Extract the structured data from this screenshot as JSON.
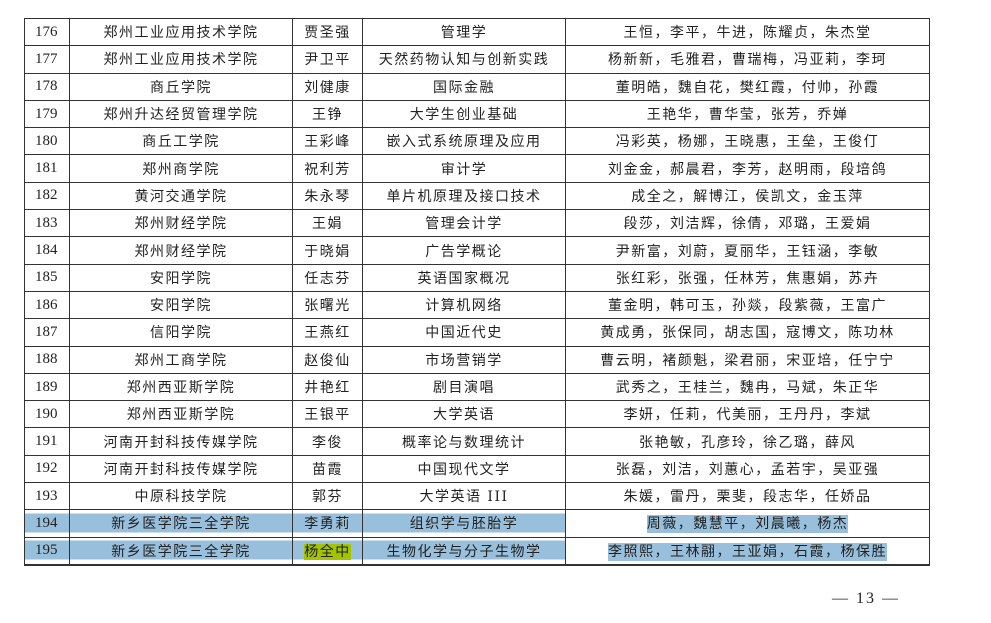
{
  "rows": [
    {
      "no": "176",
      "school": "郑州工业应用技术学院",
      "leader": "贾圣强",
      "course": "管理学",
      "team": "王恒，李平，牛进，陈耀贞，朱杰堂"
    },
    {
      "no": "177",
      "school": "郑州工业应用技术学院",
      "leader": "尹卫平",
      "course": "天然药物认知与创新实践",
      "team": "杨新新，毛雅君，曹瑞梅，冯亚莉，李珂"
    },
    {
      "no": "178",
      "school": "商丘学院",
      "leader": "刘健康",
      "course": "国际金融",
      "team": "董明皓，魏自花，樊红霞，付帅，孙霞"
    },
    {
      "no": "179",
      "school": "郑州升达经贸管理学院",
      "leader": "王铮",
      "course": "大学生创业基础",
      "team": "王艳华，曹华莹，张芳，乔婵"
    },
    {
      "no": "180",
      "school": "商丘工学院",
      "leader": "王彩峰",
      "course": "嵌入式系统原理及应用",
      "team": "冯彩英，杨娜，王晓惠，王垒，王俊仃"
    },
    {
      "no": "181",
      "school": "郑州商学院",
      "leader": "祝利芳",
      "course": "审计学",
      "team": "刘金金，郝晨君，李芳，赵明雨，段培鸽"
    },
    {
      "no": "182",
      "school": "黄河交通学院",
      "leader": "朱永琴",
      "course": "单片机原理及接口技术",
      "team": "成全之，解博江，侯凯文，金玉萍"
    },
    {
      "no": "183",
      "school": "郑州财经学院",
      "leader": "王娟",
      "course": "管理会计学",
      "team": "段莎，刘洁辉，徐倩，邓璐，王爱娟"
    },
    {
      "no": "184",
      "school": "郑州财经学院",
      "leader": "于晓娟",
      "course": "广告学概论",
      "team": "尹新富，刘蔚，夏丽华，王钰涵，李敏"
    },
    {
      "no": "185",
      "school": "安阳学院",
      "leader": "任志芬",
      "course": "英语国家概况",
      "team": "张红彩，张强，任林芳，焦惠娟，苏卉"
    },
    {
      "no": "186",
      "school": "安阳学院",
      "leader": "张曙光",
      "course": "计算机网络",
      "team": "董金明，韩可玉，孙燚，段紫薇，王富广"
    },
    {
      "no": "187",
      "school": "信阳学院",
      "leader": "王燕红",
      "course": "中国近代史",
      "team": "黄成勇，张保同，胡志国，寇博文，陈功林"
    },
    {
      "no": "188",
      "school": "郑州工商学院",
      "leader": "赵俊仙",
      "course": "市场营销学",
      "team": "曹云明，褚颜魁，梁君丽，宋亚培，任宁宁"
    },
    {
      "no": "189",
      "school": "郑州西亚斯学院",
      "leader": "井艳红",
      "course": "剧目演唱",
      "team": "武秀之，王桂兰，魏冉，马斌，朱正华"
    },
    {
      "no": "190",
      "school": "郑州西亚斯学院",
      "leader": "王银平",
      "course": "大学英语",
      "team": "李妍，任莉，代美丽，王丹丹，李斌"
    },
    {
      "no": "191",
      "school": "河南开封科技传媒学院",
      "leader": "李俊",
      "course": "概率论与数理统计",
      "team": "张艳敏，孔彦玲，徐乙璐，薛风"
    },
    {
      "no": "192",
      "school": "河南开封科技传媒学院",
      "leader": "苗霞",
      "course": "中国现代文学",
      "team": "张磊，刘洁，刘蕙心，孟若宇，吴亚强"
    },
    {
      "no": "193",
      "school": "中原科技学院",
      "leader": "郭芬",
      "course": "大学英语 III",
      "team": "朱媛，雷丹，栗斐，段志华，任娇品"
    },
    {
      "no": "194",
      "school": "新乡医学院三全学院",
      "leader": "李勇莉",
      "course": "组织学与胚胎学",
      "team": "周薇，魏慧平，刘晨曦，杨杰",
      "selected": true
    },
    {
      "no": "195",
      "school": "新乡医学院三全学院",
      "leader": "杨全中",
      "course": "生物化学与分子生物学",
      "team": "李照熙，王林翮，王亚娟，石霞，杨保胜",
      "selected": true,
      "leader_highlighted": true
    }
  ],
  "colors": {
    "selection": "#98bfdb",
    "highlight": "#a3c400"
  },
  "page_number": "— 13 —"
}
